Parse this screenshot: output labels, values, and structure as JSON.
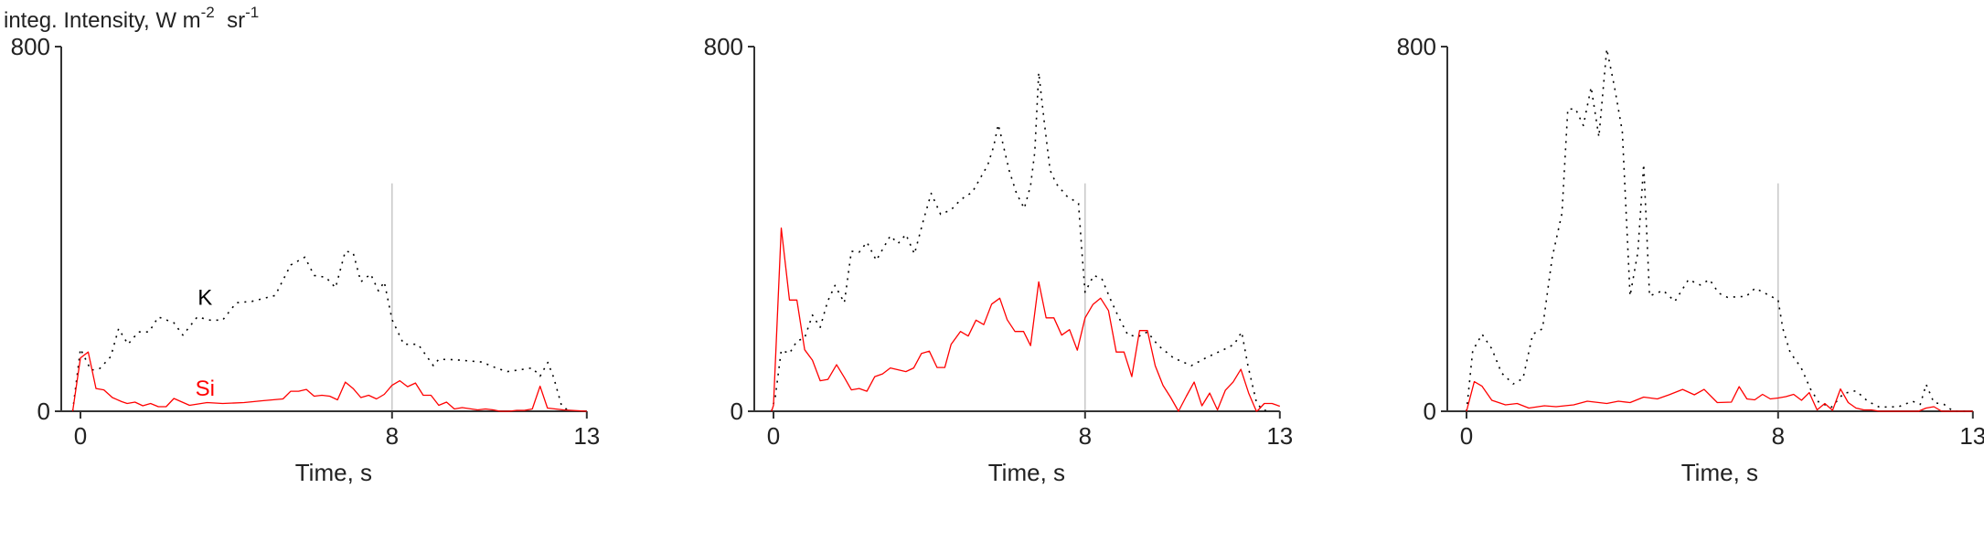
{
  "chart_data": [
    {
      "type": "line",
      "ylabel": "integ. Intensity, W  m",
      "ylabel_sup1": "-2",
      "ylabel_mid": "  sr",
      "ylabel_sup2": "-1",
      "xlabel": "Time, s",
      "xlim": [
        0,
        13
      ],
      "ylim": [
        0,
        800
      ],
      "xticks": [
        "0",
        "8",
        "13"
      ],
      "yticks": [
        "0",
        "800"
      ],
      "marker_line": {
        "x": 8,
        "y_top": 500,
        "color": "#c8c8c8"
      },
      "annotations": [
        {
          "text": "K",
          "x": 3.2,
          "y": 250,
          "color": "#000000"
        },
        {
          "text": "Si",
          "x": 3.2,
          "y": 50,
          "color": "#ff0000"
        }
      ],
      "series": [
        {
          "name": "K",
          "color": "#000000",
          "style": "dotted",
          "x": [
            -0.2,
            0,
            0.27,
            0.5,
            0.78,
            0.98,
            1.22,
            1.49,
            1.76,
            2.0,
            2.4,
            2.63,
            3.0,
            3.33,
            3.65,
            4.0,
            4.4,
            5.0,
            5.4,
            5.76,
            6.0,
            6.3,
            6.55,
            6.8,
            7.0,
            7.2,
            7.45,
            7.65,
            7.8,
            8.0,
            8.3,
            8.67,
            9.06,
            9.2,
            9.6,
            10.3,
            10.7,
            10.96,
            11.2,
            11.6,
            11.8,
            12.0,
            12.15,
            12.35,
            12.55
          ],
          "y": [
            0,
            137,
            90,
            94,
            120,
            181,
            147,
            174,
            174,
            207,
            194,
            167,
            207,
            200,
            200,
            238,
            241,
            254,
            321,
            338,
            298,
            294,
            271,
            351,
            348,
            284,
            301,
            264,
            284,
            201,
            147,
            147,
            100,
            114,
            113,
            108,
            94,
            87,
            90,
            95,
            77,
            107,
            74,
            13,
            0
          ]
        },
        {
          "name": "Si",
          "color": "#ff0000",
          "style": "solid",
          "x": [
            -0.2,
            0,
            0.2,
            0.4,
            0.6,
            0.82,
            1.06,
            1.2,
            1.4,
            1.6,
            1.8,
            2.0,
            2.2,
            2.4,
            2.8,
            3.25,
            3.65,
            4.2,
            4.67,
            5.2,
            5.4,
            5.6,
            5.8,
            6.0,
            6.2,
            6.4,
            6.6,
            6.8,
            7.0,
            7.2,
            7.4,
            7.6,
            7.8,
            8.0,
            8.2,
            8.4,
            8.6,
            8.8,
            9.0,
            9.2,
            9.4,
            9.6,
            9.8,
            10.2,
            10.4,
            10.6,
            10.78,
            11.0,
            11.2,
            11.4,
            11.6,
            11.8,
            11.99,
            12.4,
            13.0
          ],
          "y": [
            0,
            117,
            130,
            50,
            47,
            30,
            21,
            17,
            20,
            12,
            17,
            10,
            10,
            28,
            13,
            19,
            17,
            19,
            23,
            27,
            44,
            44,
            48,
            33,
            35,
            33,
            25,
            64,
            50,
            30,
            35,
            27,
            37,
            57,
            67,
            54,
            62,
            35,
            35,
            13,
            20,
            5,
            8,
            3,
            5,
            3,
            0,
            0,
            2,
            2,
            5,
            55,
            7,
            3,
            0
          ]
        }
      ]
    },
    {
      "type": "line",
      "xlabel": "Time, s",
      "xlim": [
        0,
        13
      ],
      "ylim": [
        0,
        800
      ],
      "xticks": [
        "0",
        "8",
        "13"
      ],
      "yticks": [
        "0",
        "800"
      ],
      "marker_line": {
        "x": 8,
        "y_top": 500,
        "color": "#c8c8c8"
      },
      "series": [
        {
          "name": "K",
          "color": "#000000",
          "style": "dotted",
          "x": [
            -0.05,
            0.05,
            0.2,
            0.41,
            0.6,
            0.8,
            1.0,
            1.2,
            1.39,
            1.58,
            1.82,
            2.0,
            2.2,
            2.4,
            2.64,
            3.0,
            3.2,
            3.4,
            3.62,
            3.86,
            4.05,
            4.29,
            4.56,
            4.7,
            4.9,
            5.1,
            5.3,
            5.5,
            5.65,
            5.77,
            5.85,
            6.05,
            6.24,
            6.44,
            6.6,
            6.71,
            6.81,
            6.95,
            7.1,
            7.26,
            7.53,
            7.83,
            7.92,
            8.0,
            8.22,
            8.43,
            8.66,
            8.86,
            9.1,
            9.37,
            9.6,
            9.88,
            10.27,
            10.73,
            11.1,
            11.6,
            11.83,
            12.02,
            12.18,
            12.4,
            12.55,
            12.75
          ],
          "y": [
            0,
            33,
            134,
            127,
            154,
            161,
            211,
            184,
            241,
            276,
            238,
            351,
            349,
            371,
            331,
            385,
            368,
            388,
            345,
            422,
            478,
            432,
            442,
            455,
            470,
            480,
            510,
            540,
            580,
            629,
            602,
            529,
            478,
            445,
            495,
            569,
            743,
            636,
            529,
            499,
            472,
            456,
            348,
            261,
            298,
            291,
            244,
            207,
            167,
            164,
            174,
            144,
            117,
            100,
            117,
            137,
            147,
            174,
            100,
            20,
            3,
            0
          ]
        },
        {
          "name": "Si",
          "color": "#ff0000",
          "style": "solid",
          "x": [
            -0.05,
            0,
            0.2,
            0.41,
            0.6,
            0.8,
            1.0,
            1.2,
            1.4,
            1.62,
            1.82,
            2.0,
            2.2,
            2.4,
            2.6,
            2.8,
            3.0,
            3.4,
            3.6,
            3.8,
            4.0,
            4.2,
            4.4,
            4.56,
            4.8,
            5.0,
            5.2,
            5.4,
            5.6,
            5.81,
            6.0,
            6.2,
            6.42,
            6.6,
            6.81,
            7.0,
            7.2,
            7.4,
            7.6,
            7.8,
            8.0,
            8.2,
            8.4,
            8.6,
            8.8,
            9.0,
            9.2,
            9.4,
            9.6,
            9.8,
            10.0,
            10.2,
            10.4,
            10.6,
            10.8,
            11.0,
            11.2,
            11.4,
            11.6,
            11.8,
            12.0,
            12.2,
            12.4,
            12.45,
            12.6,
            12.8,
            13.0
          ],
          "y": [
            0,
            13,
            402,
            244,
            244,
            135,
            112,
            67,
            70,
            102,
            74,
            47,
            50,
            44,
            76,
            82,
            95,
            87,
            95,
            127,
            132,
            96,
            96,
            147,
            175,
            165,
            200,
            190,
            235,
            248,
            201,
            175,
            175,
            144,
            284,
            205,
            205,
            167,
            179,
            134,
            205,
            234,
            248,
            221,
            130,
            130,
            76,
            177,
            177,
            100,
            57,
            30,
            0,
            33,
            64,
            12,
            40,
            3,
            46,
            64,
            92,
            40,
            0,
            3,
            17,
            17,
            11
          ]
        }
      ]
    },
    {
      "type": "line",
      "xlabel": "Time, s",
      "xlim": [
        0,
        13
      ],
      "ylim": [
        0,
        800
      ],
      "xticks": [
        "0",
        "8",
        "13"
      ],
      "yticks": [
        "0",
        "800"
      ],
      "marker_line": {
        "x": 8,
        "y_top": 500,
        "color": "#c8c8c8"
      },
      "series": [
        {
          "name": "K",
          "color": "#000000",
          "style": "dotted",
          "x": [
            0,
            0.16,
            0.4,
            0.65,
            0.9,
            1.2,
            1.45,
            1.7,
            1.95,
            2.2,
            2.45,
            2.6,
            2.8,
            3.0,
            3.2,
            3.4,
            3.6,
            3.8,
            4.0,
            4.2,
            4.4,
            4.55,
            4.7,
            5.05,
            5.35,
            5.7,
            6.0,
            6.24,
            6.48,
            6.7,
            7.18,
            7.41,
            7.73,
            8.0,
            8.12,
            8.31,
            8.59,
            8.83,
            9.05,
            9.37,
            9.68,
            10.0,
            10.3,
            10.6,
            11.1,
            11.45,
            11.65,
            11.8,
            12.0,
            12.26,
            12.5,
            13.0
          ],
          "y": [
            0,
            133,
            169,
            137,
            84,
            60,
            72,
            169,
            181,
            337,
            434,
            663,
            663,
            627,
            711,
            602,
            795,
            711,
            614,
            253,
            349,
            542,
            253,
            265,
            241,
            289,
            277,
            289,
            259,
            250,
            252,
            270,
            256,
            244,
            182,
            129,
            96,
            49,
            19,
            9,
            39,
            45,
            22,
            9,
            10,
            22,
            15,
            59,
            19,
            15,
            0,
            0
          ]
        },
        {
          "name": "Si",
          "color": "#ff0000",
          "style": "solid",
          "x": [
            0,
            0.2,
            0.4,
            0.65,
            1.0,
            1.3,
            1.6,
            2.0,
            2.3,
            2.75,
            3.1,
            3.6,
            3.9,
            4.2,
            4.55,
            4.9,
            5.2,
            5.55,
            5.85,
            6.1,
            6.44,
            6.8,
            7.0,
            7.2,
            7.4,
            7.6,
            7.8,
            8.0,
            8.2,
            8.4,
            8.6,
            8.8,
            9.0,
            9.2,
            9.4,
            9.6,
            9.8,
            10.0,
            10.2,
            10.4,
            10.6,
            11.6,
            11.8,
            12.0,
            12.2,
            13.0
          ],
          "y": [
            0,
            65,
            55,
            24,
            14,
            17,
            7,
            12,
            10,
            14,
            22,
            17,
            22,
            19,
            31,
            27,
            36,
            48,
            36,
            48,
            19,
            20,
            54,
            27,
            25,
            37,
            27,
            29,
            32,
            37,
            24,
            41,
            3,
            17,
            2,
            49,
            19,
            7,
            3,
            3,
            0,
            0,
            7,
            10,
            0,
            0
          ]
        }
      ]
    }
  ]
}
